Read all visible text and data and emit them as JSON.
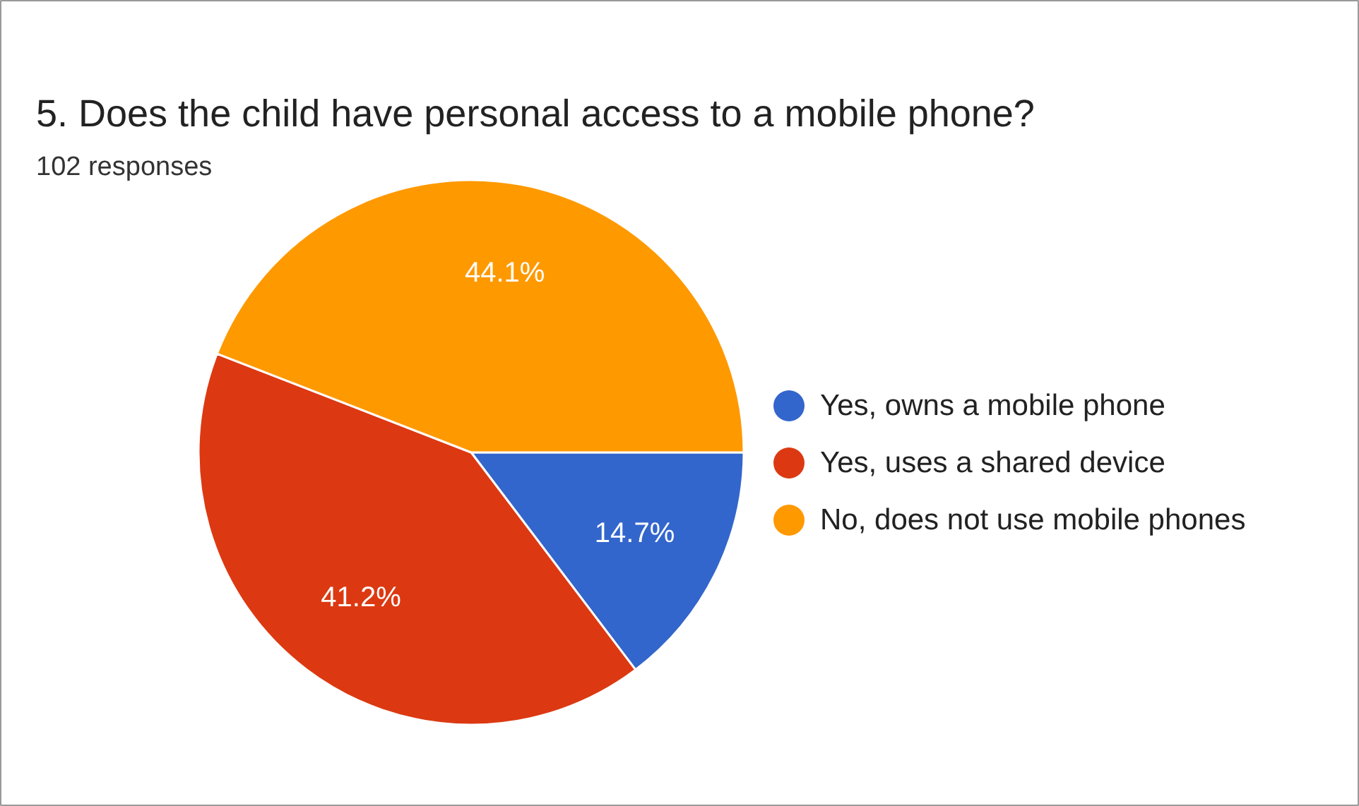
{
  "chart_data": {
    "type": "pie",
    "title": "5.  Does the child have personal access to a mobile phone?",
    "subtitle": "102 responses",
    "categories": [
      "Yes, owns a mobile phone",
      "Yes, uses a shared device",
      "No, does not use mobile phones"
    ],
    "values": [
      14.7,
      41.2,
      44.1
    ],
    "colors": [
      "#3366cc",
      "#dc3912",
      "#ff9900"
    ],
    "value_labels": [
      "14.7%",
      "41.2%",
      "44.1%"
    ],
    "legend": "right"
  }
}
